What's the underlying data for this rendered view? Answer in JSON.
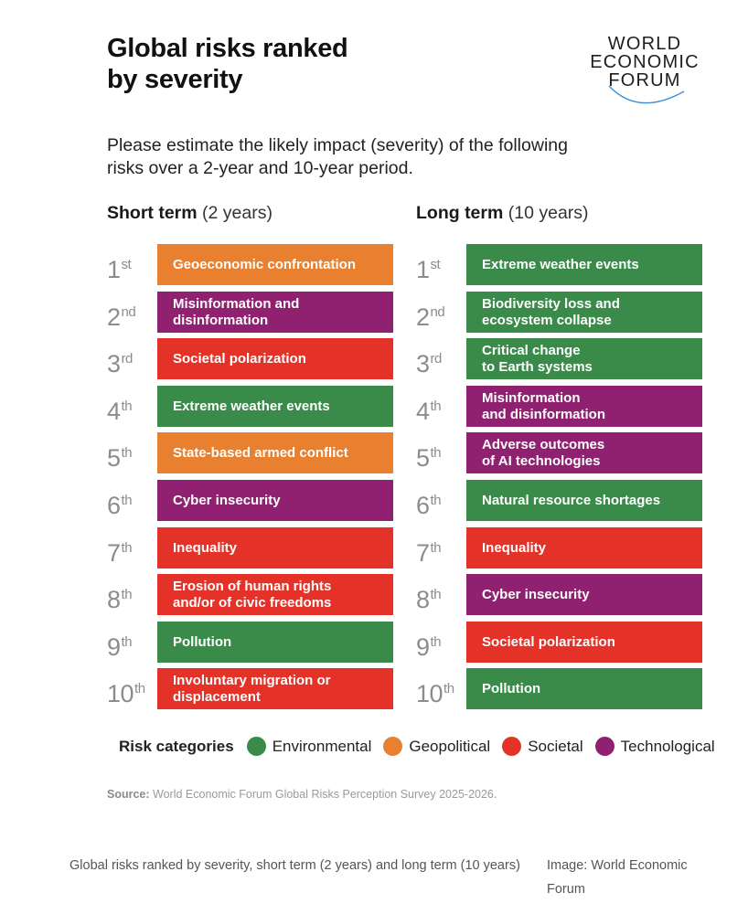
{
  "title_line1": "Global risks ranked",
  "title_line2": "by severity",
  "logo": {
    "line1": "WORLD",
    "line2": "ECONOMIC",
    "line3": "FORUM"
  },
  "subtitle_line1": "Please estimate the likely impact (severity) of the following",
  "subtitle_line2": "risks over a 2-year and 10-year period.",
  "colors": {
    "Environmental": "#3a8a4a",
    "Geopolitical": "#e8802f",
    "Societal": "#e43228",
    "Technological": "#8f2170"
  },
  "chart_data": {
    "type": "table",
    "title": "Global risks ranked by severity",
    "columns": [
      {
        "id": "short",
        "heading_bold": "Short term",
        "heading_rest": " (2 years)",
        "risks": [
          {
            "rank": "1",
            "suffix": "st",
            "label": "Geoeconomic confrontation",
            "category": "Geopolitical"
          },
          {
            "rank": "2",
            "suffix": "nd",
            "label": "Misinformation and\ndisinformation",
            "category": "Technological"
          },
          {
            "rank": "3",
            "suffix": "rd",
            "label": "Societal polarization",
            "category": "Societal"
          },
          {
            "rank": "4",
            "suffix": "th",
            "label": "Extreme weather events",
            "category": "Environmental"
          },
          {
            "rank": "5",
            "suffix": "th",
            "label": "State-based armed conflict",
            "category": "Geopolitical"
          },
          {
            "rank": "6",
            "suffix": "th",
            "label": "Cyber insecurity",
            "category": "Technological"
          },
          {
            "rank": "7",
            "suffix": "th",
            "label": "Inequality",
            "category": "Societal"
          },
          {
            "rank": "8",
            "suffix": "th",
            "label": "Erosion of human rights\nand/or of civic freedoms",
            "category": "Societal"
          },
          {
            "rank": "9",
            "suffix": "th",
            "label": "Pollution",
            "category": "Environmental"
          },
          {
            "rank": "10",
            "suffix": "th",
            "label": "Involuntary migration or\ndisplacement",
            "category": "Societal"
          }
        ]
      },
      {
        "id": "long",
        "heading_bold": "Long term",
        "heading_rest": " (10 years)",
        "risks": [
          {
            "rank": "1",
            "suffix": "st",
            "label": "Extreme weather events",
            "category": "Environmental"
          },
          {
            "rank": "2",
            "suffix": "nd",
            "label": "Biodiversity loss and\necosystem collapse",
            "category": "Environmental"
          },
          {
            "rank": "3",
            "suffix": "rd",
            "label": "Critical change\nto Earth systems",
            "category": "Environmental"
          },
          {
            "rank": "4",
            "suffix": "th",
            "label": "Misinformation\nand disinformation",
            "category": "Technological"
          },
          {
            "rank": "5",
            "suffix": "th",
            "label": "Adverse outcomes\nof AI technologies",
            "category": "Technological"
          },
          {
            "rank": "6",
            "suffix": "th",
            "label": "Natural resource shortages",
            "category": "Environmental"
          },
          {
            "rank": "7",
            "suffix": "th",
            "label": "Inequality",
            "category": "Societal"
          },
          {
            "rank": "8",
            "suffix": "th",
            "label": "Cyber insecurity",
            "category": "Technological"
          },
          {
            "rank": "9",
            "suffix": "th",
            "label": "Societal polarization",
            "category": "Societal"
          },
          {
            "rank": "10",
            "suffix": "th",
            "label": "Pollution",
            "category": "Environmental"
          }
        ]
      }
    ],
    "legend_title": "Risk categories",
    "legend": [
      "Environmental",
      "Geopolitical",
      "Societal",
      "Technological"
    ]
  },
  "source_label": "Source:",
  "source_text": " World Economic Forum Global Risks Perception Survey 2025-2026.",
  "caption": "Global risks ranked by severity, short term (2 years) and long term (10 years)",
  "credit": "Image: World Economic Forum"
}
